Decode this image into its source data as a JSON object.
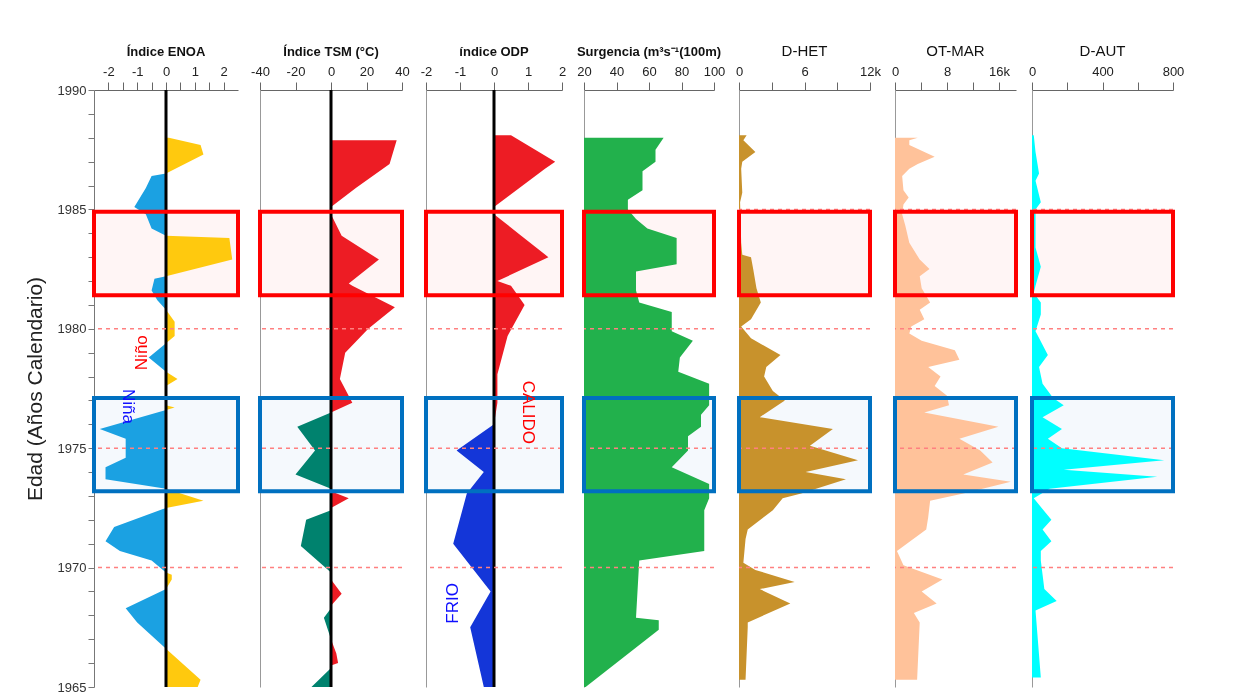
{
  "chart_data": [
    {
      "type": "area",
      "orientation": "horizontal",
      "title": "Índice ENOA",
      "ylabel": "Edad (Años Calendario)",
      "xlim": [
        -2.5,
        2.5
      ],
      "xticks": [
        -2,
        {
          "value": -1.5,
          "label": null
        },
        -1,
        {
          "value": -0.5,
          "label": null
        },
        0,
        {
          "value": 0.5,
          "label": null
        },
        1,
        {
          "value": 1.5,
          "label": null
        },
        2
      ],
      "ylim": [
        1965,
        1990
      ],
      "yticks": [
        1965,
        {
          "value": 1966,
          "label": null
        },
        {
          "value": 1967,
          "label": null
        },
        {
          "value": 1968,
          "label": null
        },
        {
          "value": 1969,
          "label": null
        },
        1970,
        {
          "value": 1971,
          "label": null
        },
        {
          "value": 1972,
          "label": null
        },
        {
          "value": 1973,
          "label": null
        },
        {
          "value": 1974,
          "label": null
        },
        1975,
        {
          "value": 1976,
          "label": null
        },
        {
          "value": 1977,
          "label": null
        },
        {
          "value": 1978,
          "label": null
        },
        {
          "value": 1979,
          "label": null
        },
        1980,
        {
          "value": 1981,
          "label": null
        },
        {
          "value": 1982,
          "label": null
        },
        {
          "value": 1983,
          "label": null
        },
        {
          "value": 1984,
          "label": null
        },
        1985,
        {
          "value": 1986,
          "label": null
        },
        {
          "value": 1987,
          "label": null
        },
        {
          "value": 1988,
          "label": null
        },
        {
          "value": 1989,
          "label": null
        },
        1990
      ],
      "series": [
        {
          "color": "#ffc90e",
          "x": [
            1988.0,
            1987.7,
            1987.3,
            1986.5,
            1985.0,
            1983.9,
            1983.8,
            1982.9,
            1982.2,
            1981.5,
            1980.8,
            1980.3,
            1979.7,
            1979.4,
            1979.0,
            1978.2,
            1977.9,
            1977.6,
            1977.2,
            1976.8,
            1976.7,
            1976.6,
            1975.0,
            1973.3,
            1972.8,
            1972.5,
            1971.0,
            1969.8,
            1969.7,
            1969.5,
            1969.1,
            1968.0,
            1966.6,
            1965.3,
            1965.0
          ],
          "values": [
            0.1,
            1.2,
            1.3,
            0,
            null,
            0,
            2.2,
            2.3,
            0,
            null,
            0,
            0.3,
            0.3,
            0,
            null,
            0,
            0.4,
            0,
            null,
            0,
            0.3,
            0,
            null,
            0,
            1.3,
            0,
            null,
            0,
            0.2,
            0.2,
            0,
            null,
            0,
            1.2,
            1.1
          ]
        },
        {
          "color": "#1ba1e2",
          "x": [
            1986.5,
            1986.4,
            1985.9,
            1985.1,
            1984.8,
            1984.2,
            1983.9,
            1983.0,
            1982.2,
            1982.1,
            1981.6,
            1981.2,
            1980.8,
            1980.0,
            1979.4,
            1978.8,
            1978.2,
            1977.0,
            1976.6,
            1975.8,
            1975.4,
            1974.6,
            1974.2,
            1973.7,
            1973.3,
            1973.0,
            1972.5,
            1971.7,
            1971.1,
            1970.7,
            1970.3,
            1969.8,
            1969.5,
            1969.1,
            1968.3,
            1967.7,
            1966.6
          ],
          "values": [
            0,
            -0.5,
            -0.7,
            -1.1,
            -0.7,
            -0.5,
            0,
            null,
            0,
            -0.4,
            -0.5,
            -0.3,
            0,
            null,
            0,
            -0.6,
            0,
            null,
            0,
            -2.3,
            -1.4,
            -1.4,
            -2.1,
            -2.1,
            0,
            null,
            0,
            -1.8,
            -2.1,
            -1.6,
            -0.5,
            0,
            null,
            0,
            -1.4,
            -1.0,
            0
          ]
        }
      ],
      "ref_lines": [
        {
          "axis": "x",
          "value": 0,
          "color": "#000000"
        },
        {
          "axis": "y",
          "value": 1980,
          "color": "#ff8080",
          "line_style": "dashed"
        },
        {
          "axis": "y",
          "value": 1975,
          "color": "#ff8080",
          "line_style": "dashed"
        },
        {
          "axis": "y",
          "value": 1970,
          "color": "#ff8080",
          "line_style": "dashed"
        }
      ],
      "bands": [
        {
          "axis": "y",
          "from": 1981.4,
          "to": 1984.9,
          "color": "#ff0000"
        },
        {
          "axis": "y",
          "from": 1973.2,
          "to": 1977.1,
          "color": "#0070c0"
        }
      ],
      "annotations": [
        "Niño",
        "Niña"
      ]
    },
    {
      "type": "area",
      "orientation": "horizontal",
      "title": "Índice TSM  (°C)",
      "xlim": [
        -40,
        40
      ],
      "xticks": [
        -40,
        -20,
        0,
        20,
        40
      ],
      "ylim": [
        1965,
        1990
      ],
      "tick_labels": "x",
      "series": [
        {
          "color": "#ed1c24",
          "x": [
            1987.9,
            1986.9,
            1985.9,
            1985.1,
            1984.8,
            1983.9,
            1982.9,
            1981.9,
            1981.8,
            1980.9,
            1980.0,
            1979.0,
            1977.9,
            1976.9,
            1976.5,
            1974.0,
            1973.2,
            1972.9,
            1972.5,
            1971.0,
            1969.5,
            1968.9,
            1968.4,
            1967.5,
            1967.0,
            1966.4,
            1966.0,
            1965.9
          ],
          "values": [
            37,
            33,
            14,
            0,
            0,
            6,
            27,
            10,
            12,
            36,
            21,
            8,
            5,
            12,
            0,
            null,
            0,
            10,
            0,
            null,
            0,
            6,
            0,
            null,
            0,
            3,
            4,
            0
          ]
        },
        {
          "color": "#00826e",
          "x": [
            1976.5,
            1975.9,
            1974.9,
            1973.9,
            1973.3,
            1972.9,
            1972.4,
            1972.0,
            1970.9,
            1969.8,
            1969.0,
            1968.3,
            1967.9,
            1967.0,
            1966.4,
            1965.8,
            1965.0
          ],
          "values": [
            0,
            -19,
            -9,
            -20,
            0,
            null,
            0,
            -14,
            -17,
            0,
            null,
            0,
            -4,
            0,
            null,
            0,
            -11
          ]
        }
      ],
      "ref_lines": [
        {
          "axis": "x",
          "value": 0,
          "color": "#000000"
        },
        {
          "axis": "y",
          "value": 1980,
          "color": "#ff8080",
          "line_style": "dashed"
        },
        {
          "axis": "y",
          "value": 1975,
          "color": "#ff8080",
          "line_style": "dashed"
        },
        {
          "axis": "y",
          "value": 1970,
          "color": "#ff8080",
          "line_style": "dashed"
        }
      ],
      "bands": [
        {
          "axis": "y",
          "from": 1981.4,
          "to": 1984.9,
          "color": "#ff0000"
        },
        {
          "axis": "y",
          "from": 1973.2,
          "to": 1977.1,
          "color": "#0070c0"
        }
      ]
    },
    {
      "type": "area",
      "orientation": "horizontal",
      "title": "índice ODP",
      "xlim": [
        -2,
        2
      ],
      "xticks": [
        -2,
        -1,
        0,
        1,
        2
      ],
      "ylim": [
        1965,
        1990
      ],
      "tick_labels": "x",
      "series": [
        {
          "color": "#ed1c24",
          "x": [
            1988.1,
            1987.0,
            1986.7,
            1985.1,
            1984.8,
            1983.9,
            1983.0,
            1982.0,
            1981.8,
            1981.0,
            1979.7,
            1978.1,
            1976.9,
            1976.0
          ],
          "values": [
            0.5,
            1.8,
            1.5,
            0,
            0,
            0.8,
            1.6,
            0.1,
            0.5,
            0.9,
            0.4,
            0.1,
            0.1,
            0
          ]
        },
        {
          "color": "#1436d8",
          "x": [
            1976.0,
            1974.9,
            1974.0,
            1973.1,
            1971.0,
            1969.0,
            1967.5,
            1965.0
          ],
          "values": [
            0,
            -1.1,
            -0.3,
            -0.8,
            -1.2,
            -0.1,
            -0.7,
            -0.3
          ]
        }
      ],
      "ref_lines": [
        {
          "axis": "x",
          "value": 0,
          "color": "#000000"
        },
        {
          "axis": "y",
          "value": 1980,
          "color": "#ff8080",
          "line_style": "dashed"
        },
        {
          "axis": "y",
          "value": 1975,
          "color": "#ff8080",
          "line_style": "dashed"
        },
        {
          "axis": "y",
          "value": 1970,
          "color": "#ff8080",
          "line_style": "dashed"
        }
      ],
      "bands": [
        {
          "axis": "y",
          "from": 1981.4,
          "to": 1984.9,
          "color": "#ff0000"
        },
        {
          "axis": "y",
          "from": 1973.2,
          "to": 1977.1,
          "color": "#0070c0"
        }
      ],
      "annotations": [
        "CALIDO",
        "FRIO"
      ]
    },
    {
      "type": "area",
      "orientation": "horizontal",
      "title": "Surgencia (m³s⁻¹(100m)",
      "xlim": [
        20,
        100
      ],
      "xticks": [
        20,
        40,
        60,
        80,
        100
      ],
      "ylim": [
        1965,
        1990
      ],
      "tick_labels": "x",
      "series": [
        {
          "color": "#22b14c",
          "x": [
            1988.0,
            1987.5,
            1987.0,
            1986.6,
            1985.8,
            1985.4,
            1985.0,
            1984.6,
            1984.2,
            1983.8,
            1982.7,
            1982.4,
            1981.6,
            1981.1,
            1980.7,
            1979.9,
            1979.5,
            1978.8,
            1978.2,
            1977.7,
            1976.8,
            1976.4,
            1975.9,
            1975.5,
            1974.9,
            1974.2,
            1973.5,
            1972.9,
            1972.4,
            1970.7,
            1970.3,
            1967.9,
            1967.8,
            1967.4,
            1965.0
          ],
          "values": [
            69,
            64,
            64,
            56,
            56,
            47,
            47,
            52,
            59,
            77,
            77,
            52,
            52,
            54,
            74,
            74,
            87,
            79,
            78,
            97,
            97,
            92,
            92,
            84,
            84,
            74,
            97,
            97,
            94,
            94,
            54,
            52,
            66,
            66,
            21
          ]
        }
      ],
      "ref_lines": [
        {
          "axis": "y",
          "value": 1980,
          "color": "#ff8080",
          "line_style": "dashed"
        },
        {
          "axis": "y",
          "value": 1975,
          "color": "#ff8080",
          "line_style": "dashed"
        },
        {
          "axis": "y",
          "value": 1970,
          "color": "#ff8080",
          "line_style": "dashed"
        }
      ],
      "bands": [
        {
          "axis": "y",
          "from": 1981.4,
          "to": 1984.9,
          "color": "#ff0000"
        },
        {
          "axis": "y",
          "from": 1973.2,
          "to": 1977.1,
          "color": "#0070c0"
        }
      ]
    },
    {
      "type": "area",
      "orientation": "horizontal",
      "title": "D-HET",
      "xlim": [
        0,
        12
      ],
      "xticks": [
        0,
        {
          "value": 3,
          "label": null
        },
        6,
        {
          "value": 9,
          "label": null
        },
        {
          "value": 12,
          "label": "12k"
        }
      ],
      "ylim": [
        1965,
        1990
      ],
      "tick_labels": "x",
      "series": [
        {
          "color": "#c8922c",
          "x": [
            1988.1,
            1987.9,
            1987.4,
            1987.0,
            1986.7,
            1985.7,
            1985.3,
            1983.6,
            1983.1,
            1983.0,
            1982.5,
            1981.7,
            1981.1,
            1980.4,
            1980.1,
            1979.6,
            1978.9,
            1978.4,
            1978.0,
            1977.4,
            1977.0,
            1976.3,
            1975.8,
            1975.1,
            1974.5,
            1974.0,
            1973.7,
            1973.1,
            1972.9,
            1972.4,
            1971.6,
            1971.2,
            1970.2,
            1969.9,
            1969.4,
            1969.1,
            1968.5,
            1967.7,
            1967.5,
            1965.3
          ],
          "values": [
            0.7,
            0.4,
            1.5,
            0.3,
            0.2,
            0.3,
            0.1,
            0.2,
            0.3,
            1.1,
            1.3,
            1.6,
            2.0,
            1.1,
            0.2,
            1.1,
            3.8,
            2.5,
            2.3,
            3.1,
            4.2,
            1.9,
            8.6,
            6.5,
            10.9,
            6.1,
            9.8,
            5.7,
            4.0,
            3.1,
            0.8,
            0.6,
            0.4,
            1.5,
            5.1,
            1.9,
            4.7,
            0.8,
            0.8,
            0.6
          ]
        }
      ],
      "ref_lines": [
        {
          "axis": "y",
          "value": 1985,
          "color": "#ff8080",
          "line_style": "dashed"
        },
        {
          "axis": "y",
          "value": 1980,
          "color": "#ff8080",
          "line_style": "dashed"
        },
        {
          "axis": "y",
          "value": 1975,
          "color": "#ff8080",
          "line_style": "dashed"
        },
        {
          "axis": "y",
          "value": 1970,
          "color": "#ff8080",
          "line_style": "dashed"
        }
      ],
      "bands": [
        {
          "axis": "y",
          "from": 1981.4,
          "to": 1984.9,
          "color": "#ff0000"
        },
        {
          "axis": "y",
          "from": 1973.2,
          "to": 1977.1,
          "color": "#0070c0"
        }
      ]
    },
    {
      "type": "area",
      "orientation": "horizontal",
      "title": "OT-MAR",
      "xlim": [
        0,
        18.6
      ],
      "xticks": [
        0,
        {
          "value": 4,
          "label": null
        },
        8,
        {
          "value": 12,
          "label": null
        },
        {
          "value": 16,
          "label": "16k"
        }
      ],
      "ylim": [
        1965,
        1990
      ],
      "tick_labels": "x",
      "series": [
        {
          "color": "#ffc29a",
          "x": [
            1988.0,
            1987.9,
            1987.7,
            1987.2,
            1986.9,
            1986.7,
            1986.4,
            1985.8,
            1985.5,
            1985.2,
            1984.8,
            1984.3,
            1983.6,
            1982.9,
            1982.5,
            1982.2,
            1981.7,
            1981.1,
            1980.8,
            1980.4,
            1980.1,
            1979.8,
            1979.5,
            1979.1,
            1978.7,
            1978.4,
            1978.0,
            1977.6,
            1977.2,
            1976.8,
            1976.5,
            1975.9,
            1975.4,
            1974.9,
            1974.4,
            1973.9,
            1973.6,
            1973.1,
            1972.8,
            1972.1,
            1971.6,
            1970.7,
            1970.1,
            1969.5,
            1969.0,
            1968.5,
            1968.1,
            1967.7,
            1965.3
          ],
          "values": [
            3.5,
            2.2,
            2.2,
            6.1,
            3.5,
            2.2,
            1.1,
            1.3,
            2.1,
            1.3,
            1.1,
            1.6,
            2.2,
            3.8,
            5.3,
            3.8,
            4.1,
            5.4,
            3.8,
            4.5,
            2.5,
            2.2,
            4.1,
            9.2,
            9.9,
            5.1,
            7.0,
            6.1,
            8.0,
            8.3,
            4.5,
            15.9,
            9.9,
            13.1,
            15.0,
            10.5,
            17.8,
            10.5,
            5.4,
            5.1,
            4.8,
            0.3,
            1.3,
            7.3,
            4.1,
            6.4,
            2.9,
            3.8,
            3.4
          ]
        }
      ],
      "ref_lines": [
        {
          "axis": "y",
          "value": 1985,
          "color": "#ff8080",
          "line_style": "dashed"
        },
        {
          "axis": "y",
          "value": 1980,
          "color": "#ff8080",
          "line_style": "dashed"
        },
        {
          "axis": "y",
          "value": 1975,
          "color": "#ff8080",
          "line_style": "dashed"
        },
        {
          "axis": "y",
          "value": 1970,
          "color": "#ff8080",
          "line_style": "dashed"
        }
      ],
      "bands": [
        {
          "axis": "y",
          "from": 1981.4,
          "to": 1984.9,
          "color": "#ff0000"
        },
        {
          "axis": "y",
          "from": 1973.2,
          "to": 1977.1,
          "color": "#0070c0"
        }
      ]
    },
    {
      "type": "area",
      "orientation": "horizontal",
      "title": "D-AUT",
      "xlim": [
        0,
        800
      ],
      "xticks": [
        0,
        {
          "value": 200,
          "label": null
        },
        400,
        {
          "value": 600,
          "label": null
        },
        800
      ],
      "ylim": [
        1965,
        1990
      ],
      "tick_labels": "x",
      "series": [
        {
          "color": "#00ffff",
          "x": [
            1988.1,
            1987.4,
            1986.5,
            1986.2,
            1985.3,
            1985.0,
            1984.3,
            1983.4,
            1982.6,
            1981.8,
            1981.5,
            1981.1,
            1980.6,
            1979.9,
            1978.9,
            1978.4,
            1977.7,
            1977.1,
            1976.8,
            1976.3,
            1975.8,
            1975.4,
            1975.0,
            1974.5,
            1974.1,
            1973.8,
            1973.3,
            1972.9,
            1972.0,
            1971.6,
            1971.1,
            1970.7,
            1970.3,
            1969.7,
            1969.1,
            1968.6,
            1968.2,
            1965.4
          ],
          "values": [
            10,
            20,
            40,
            20,
            50,
            20,
            20,
            20,
            50,
            20,
            10,
            50,
            50,
            20,
            90,
            40,
            60,
            120,
            180,
            60,
            170,
            90,
            170,
            750,
            180,
            710,
            100,
            10,
            110,
            60,
            110,
            50,
            50,
            60,
            70,
            140,
            20,
            50
          ]
        }
      ],
      "ref_lines": [
        {
          "axis": "y",
          "value": 1985,
          "color": "#ff8080",
          "line_style": "dashed"
        },
        {
          "axis": "y",
          "value": 1980,
          "color": "#ff8080",
          "line_style": "dashed"
        },
        {
          "axis": "y",
          "value": 1975,
          "color": "#ff8080",
          "line_style": "dashed"
        },
        {
          "axis": "y",
          "value": 1970,
          "color": "#ff8080",
          "line_style": "dashed"
        }
      ],
      "bands": [
        {
          "axis": "y",
          "from": 1981.4,
          "to": 1984.9,
          "color": "#ff0000"
        },
        {
          "axis": "y",
          "from": 1973.2,
          "to": 1977.1,
          "color": "#0070c0"
        }
      ]
    }
  ]
}
